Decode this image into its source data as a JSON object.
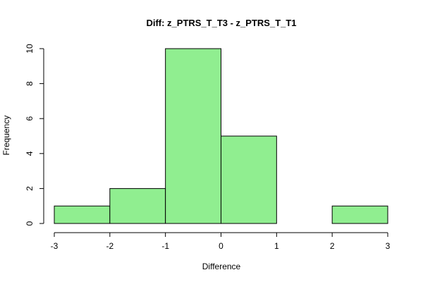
{
  "chart_data": {
    "type": "bar",
    "title": "Diff: z_PTRS_T_T3 - z_PTRS_T_T1",
    "xlabel": "Difference",
    "ylabel": "Frequency",
    "bins": [
      {
        "start": -3,
        "end": -2,
        "count": 1
      },
      {
        "start": -2,
        "end": -1,
        "count": 2
      },
      {
        "start": -1,
        "end": 0,
        "count": 10
      },
      {
        "start": 0,
        "end": 1,
        "count": 5
      },
      {
        "start": 1,
        "end": 2,
        "count": 0
      },
      {
        "start": 2,
        "end": 3,
        "count": 1
      }
    ],
    "xlim": [
      -3,
      3
    ],
    "ylim": [
      0,
      10
    ],
    "x_ticks": [
      "-3",
      "-2",
      "-1",
      "0",
      "1",
      "2",
      "3"
    ],
    "y_ticks": [
      "0",
      "2",
      "4",
      "6",
      "8",
      "10"
    ],
    "bar_color": "#90ee90",
    "grid": false
  }
}
